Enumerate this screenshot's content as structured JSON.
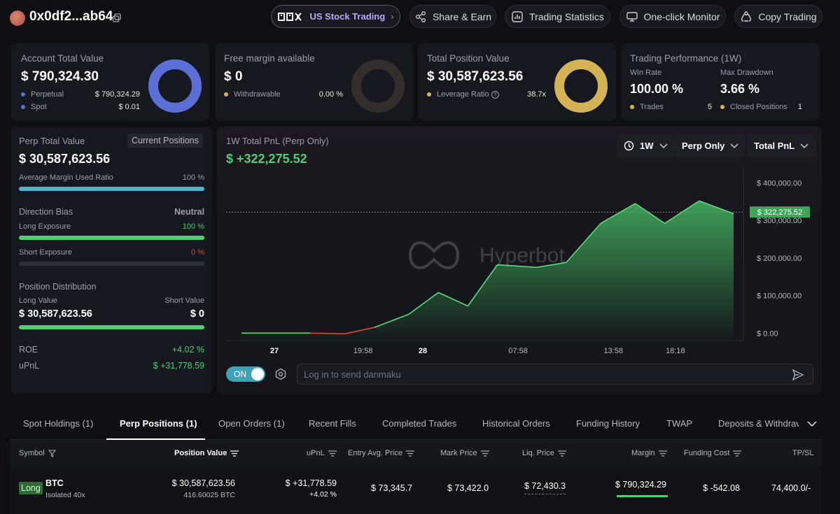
{
  "header": {
    "address": "0x0df2...ab64",
    "us_stock_label": "US Stock Trading",
    "share_label": "Share & Earn",
    "stats_label": "Trading Statistics",
    "monitor_label": "One-click Monitor",
    "copy_label": "Copy Trading"
  },
  "colors": {
    "perp": "#5b6fd6",
    "spot": "#5b6fd6",
    "leverage": "#d4b256",
    "green": "#4fcf72",
    "red": "#e0453e",
    "cyan": "#4fb3c9"
  },
  "account": {
    "title": "Account Total Value",
    "value": "$ 790,324.30",
    "perp_label": "Perpetual",
    "perp_value": "$ 790,324.29",
    "spot_label": "Spot",
    "spot_value": "$ 0.01",
    "perp_fraction": 1.0
  },
  "margin": {
    "title": "Free margin available",
    "value": "$ 0",
    "withdraw_label": "Withdrawable",
    "withdraw_value": "0.00 %",
    "fraction": 0
  },
  "position": {
    "title": "Total Position Value",
    "value": "$ 30,587,623.56",
    "leverage_label": "Leverage Ratio",
    "leverage_value": "38.7x",
    "fraction": 1.0
  },
  "performance": {
    "title": "Trading Performance (1W)",
    "winrate_label": "Win Rate",
    "winrate_value": "100.00 %",
    "drawdown_label": "Max Drawdown",
    "drawdown_value": "3.66 %",
    "trades_label": "Trades",
    "trades_value": "5",
    "closed_label": "Closed Positions",
    "closed_value": "1"
  },
  "perp_panel": {
    "title": "Perp Total Value",
    "current_btn": "Current Positions",
    "value": "$ 30,587,623.56",
    "margin_ratio_label": "Average Margin Used Ratio",
    "margin_ratio_value": "100 %",
    "margin_ratio": 1.0,
    "bias_label": "Direction Bias",
    "bias_value": "Neutral",
    "long_label": "Long Exposure",
    "long_value": "100 %",
    "long_ratio": 1.0,
    "short_label": "Short Exposure",
    "short_value": "0 %",
    "short_ratio": 0,
    "dist_label": "Position Distribution",
    "long_val_label": "Long Value",
    "long_val": "$ 30,587,623.56",
    "short_val_label": "Short Value",
    "short_val": "$ 0",
    "dist_ratio": 1.0,
    "roe_label": "ROE",
    "roe_value": "+4.02 %",
    "upnl_label": "uPnL",
    "upnl_value": "$ +31,778.59"
  },
  "pnl": {
    "title": "1W Total PnL (Perp Only)",
    "value": "$ +322,275.52",
    "range_btn": "1W",
    "scope_btn": "Perp Only",
    "metric_btn": "Total PnL",
    "toggle_label": "ON",
    "danmaku_placeholder": "Log in to send danmaku",
    "watermark": "Hyperbot"
  },
  "chart_data": {
    "type": "area",
    "x_ticks": [
      {
        "label": "27",
        "bold": true,
        "t": 0.0
      },
      {
        "label": "19:58",
        "bold": false,
        "t": 0.2
      },
      {
        "label": "28",
        "bold": true,
        "t": 0.335
      },
      {
        "label": "07:58",
        "bold": false,
        "t": 0.55
      },
      {
        "label": "13:58",
        "bold": false,
        "t": 0.765
      },
      {
        "label": "18:18",
        "bold": false,
        "t": 0.905
      }
    ],
    "y_ticks": [
      "$ 400,000.00",
      "$ 300,000.00",
      "$ 200,000.00",
      "$ 100,000.00",
      "$ 0.00"
    ],
    "y_tick_values": [
      400000,
      300000,
      200000,
      100000,
      0
    ],
    "ylim": [
      -20000,
      440000
    ],
    "current_label": "$ 322,275.52",
    "current_value": 322275.52,
    "points": [
      [
        0,
        0
      ],
      [
        0.07,
        0
      ],
      [
        0.14,
        0
      ],
      [
        0.21,
        -2000
      ],
      [
        0.27,
        15000
      ],
      [
        0.34,
        50000
      ],
      [
        0.4,
        108000
      ],
      [
        0.46,
        72000
      ],
      [
        0.52,
        182000
      ],
      [
        0.6,
        175000
      ],
      [
        0.66,
        188000
      ],
      [
        0.73,
        292000
      ],
      [
        0.8,
        345000
      ],
      [
        0.86,
        292000
      ],
      [
        0.93,
        352000
      ],
      [
        1.0,
        318000
      ]
    ]
  },
  "tabs": [
    "Spot Holdings (1)",
    "Perp Positions (1)",
    "Open Orders (1)",
    "Recent Fills",
    "Completed Trades",
    "Historical Orders",
    "Funding History",
    "TWAP",
    "Deposits & Withdrav"
  ],
  "table": {
    "headers": {
      "symbol": "Symbol",
      "position_value": "Position Value",
      "upnl": "uPnL",
      "entry": "Entry Avg. Price",
      "mark": "Mark Price",
      "liq": "Liq. Price",
      "margin": "Margin",
      "funding": "Funding Cost",
      "tpsl": "TP/SL"
    },
    "row": {
      "side": "Long",
      "symbol": "BTC",
      "mode": "Isolated 40x",
      "position_value": "$ 30,587,623.56",
      "position_size": "416.60025 BTC",
      "upnl": "$ +31,778.59",
      "upnl_pct": "+4.02 %",
      "entry": "$ 73,345.7",
      "mark": "$ 73,422.0",
      "liq": "$ 72,430.3",
      "margin": "$ 790,324.29",
      "funding": "$ -542.08",
      "tpsl": "74,400.0/-"
    }
  }
}
